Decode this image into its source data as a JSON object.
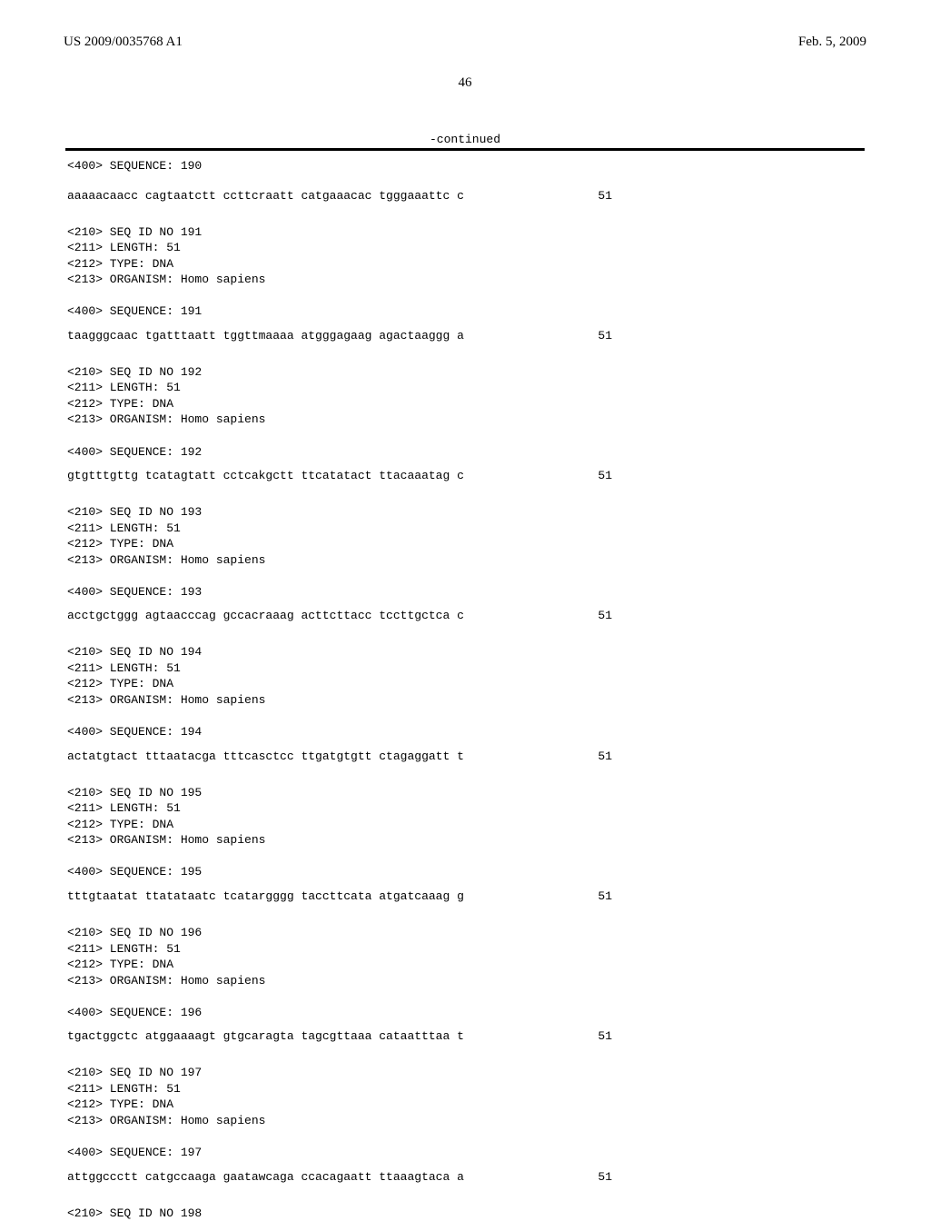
{
  "header": {
    "pub_number": "US 2009/0035768 A1",
    "pub_date": "Feb. 5, 2009"
  },
  "page_number": "46",
  "continued_label": "-continued",
  "entries": [
    {
      "meta": "<400> SEQUENCE: 190",
      "sequence": "aaaaacaacc cagtaatctt ccttcraatt catgaaacac tgggaaattc c",
      "length": "51"
    },
    {
      "meta": "<210> SEQ ID NO 191\n<211> LENGTH: 51\n<212> TYPE: DNA\n<213> ORGANISM: Homo sapiens\n\n<400> SEQUENCE: 191",
      "sequence": "taagggcaac tgatttaatt tggttmaaaa atgggagaag agactaaggg a",
      "length": "51"
    },
    {
      "meta": "<210> SEQ ID NO 192\n<211> LENGTH: 51\n<212> TYPE: DNA\n<213> ORGANISM: Homo sapiens\n\n<400> SEQUENCE: 192",
      "sequence": "gtgtttgttg tcatagtatt cctcakgctt ttcatatact ttacaaatag c",
      "length": "51"
    },
    {
      "meta": "<210> SEQ ID NO 193\n<211> LENGTH: 51\n<212> TYPE: DNA\n<213> ORGANISM: Homo sapiens\n\n<400> SEQUENCE: 193",
      "sequence": "acctgctggg agtaacccag gccacraaag acttcttacc tccttgctca c",
      "length": "51"
    },
    {
      "meta": "<210> SEQ ID NO 194\n<211> LENGTH: 51\n<212> TYPE: DNA\n<213> ORGANISM: Homo sapiens\n\n<400> SEQUENCE: 194",
      "sequence": "actatgtact tttaatacga tttcasctcc ttgatgtgtt ctagaggatt t",
      "length": "51"
    },
    {
      "meta": "<210> SEQ ID NO 195\n<211> LENGTH: 51\n<212> TYPE: DNA\n<213> ORGANISM: Homo sapiens\n\n<400> SEQUENCE: 195",
      "sequence": "tttgtaatat ttatataatc tcatargggg taccttcata atgatcaaag g",
      "length": "51"
    },
    {
      "meta": "<210> SEQ ID NO 196\n<211> LENGTH: 51\n<212> TYPE: DNA\n<213> ORGANISM: Homo sapiens\n\n<400> SEQUENCE: 196",
      "sequence": "tgactggctc atggaaaagt gtgcaragta tagcgttaaa cataatttaa t",
      "length": "51"
    },
    {
      "meta": "<210> SEQ ID NO 197\n<211> LENGTH: 51\n<212> TYPE: DNA\n<213> ORGANISM: Homo sapiens\n\n<400> SEQUENCE: 197",
      "sequence": "attggccctt catgccaaga gaatawcaga ccacagaatt ttaaagtaca a",
      "length": "51"
    }
  ],
  "trailing": "<210> SEQ ID NO 198"
}
